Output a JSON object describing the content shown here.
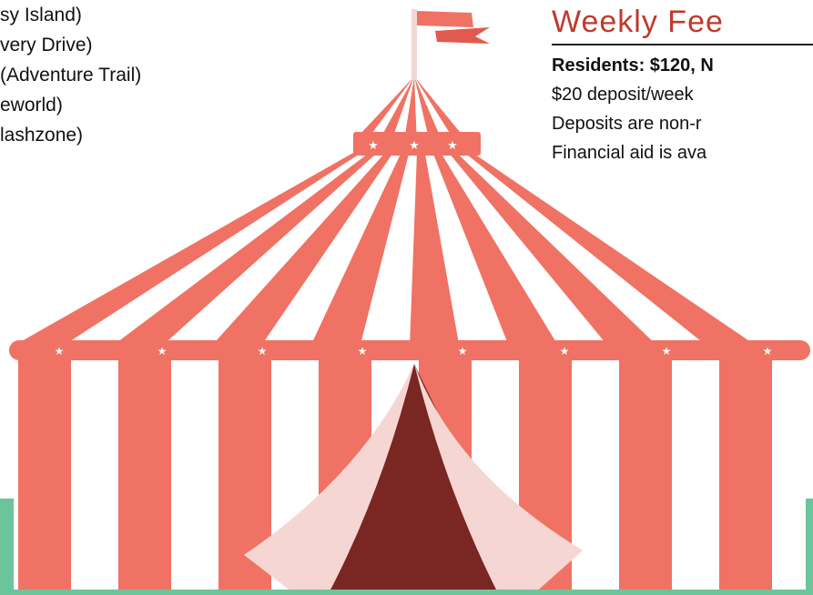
{
  "left_list": [
    "sy Island)",
    "very Drive)",
    "(Adventure Trail)",
    "eworld)",
    "lashzone)"
  ],
  "fees": {
    "title": "Weekly Fee",
    "lines": [
      "Residents: $120, N",
      "$20 deposit/week",
      "Deposits are non-r",
      "Financial aid is ava"
    ]
  }
}
